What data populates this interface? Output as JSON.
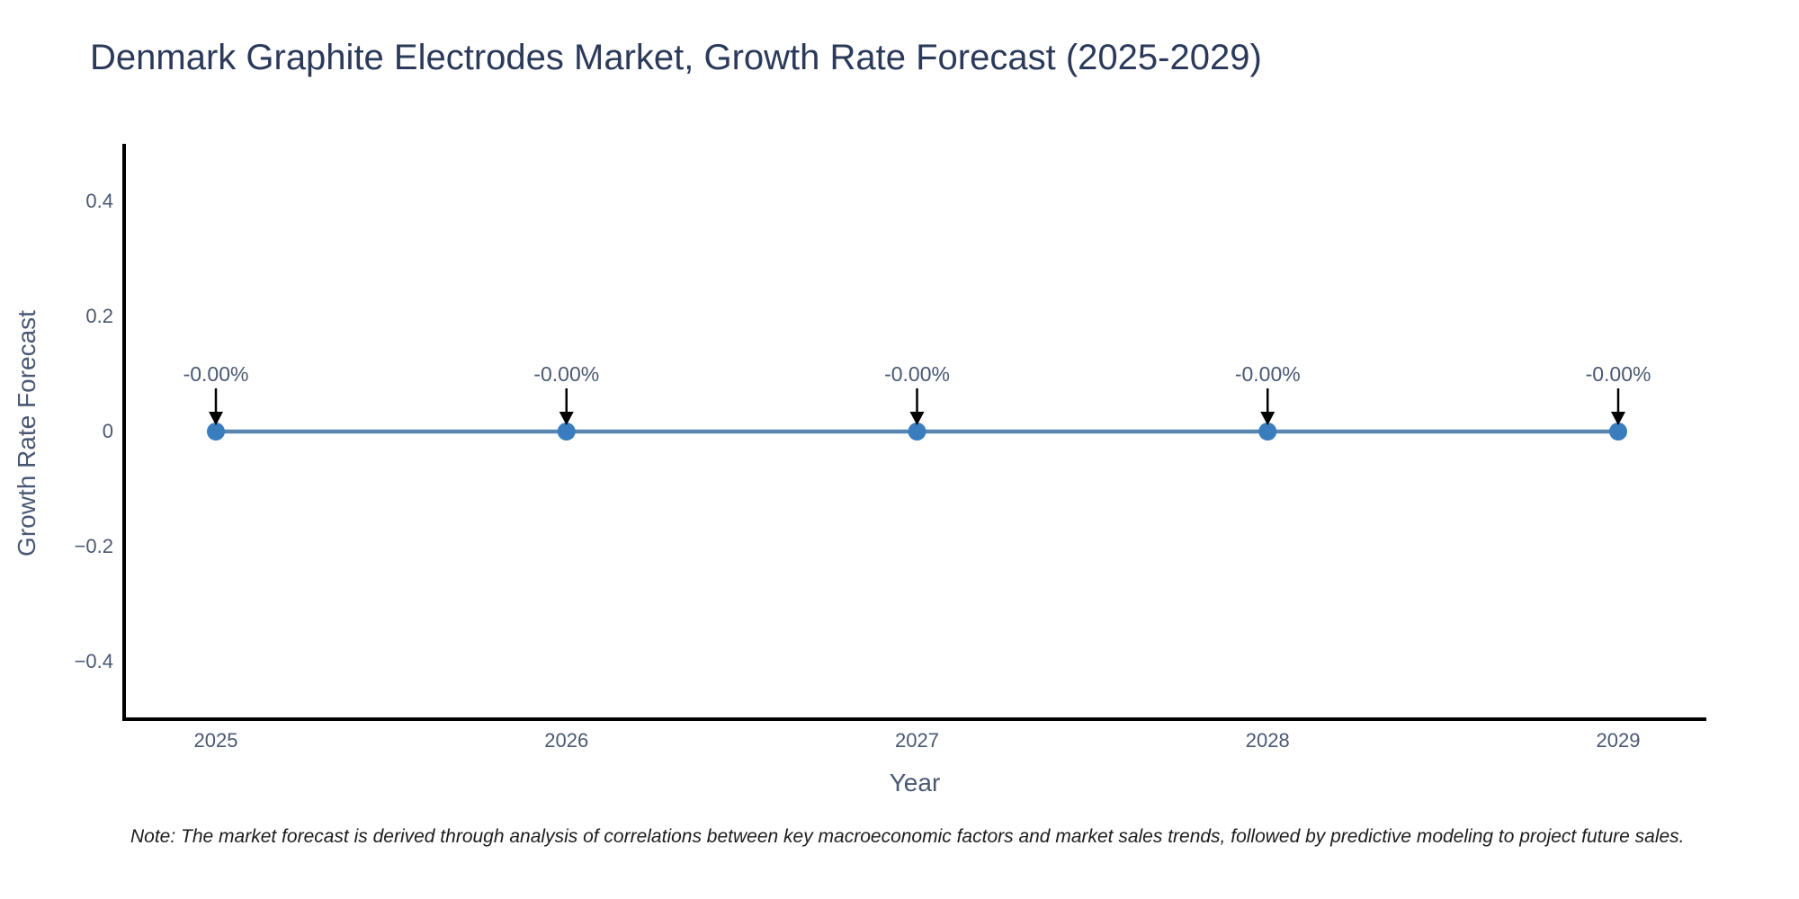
{
  "chart_data": {
    "type": "line",
    "title": "Denmark Graphite Electrodes Market, Growth Rate Forecast (2025-2029)",
    "xlabel": "Year",
    "ylabel": "Growth Rate Forecast",
    "categories": [
      "2025",
      "2026",
      "2027",
      "2028",
      "2029"
    ],
    "series": [
      {
        "name": "Growth Rate Forecast",
        "values": [
          0,
          0,
          0,
          0,
          0
        ],
        "point_labels": [
          "-0.00%",
          "-0.00%",
          "-0.00%",
          "-0.00%",
          "-0.00%"
        ]
      }
    ],
    "ylim": [
      -0.5,
      0.5
    ],
    "yticks": [
      0.4,
      0.2,
      0,
      -0.2,
      -0.4
    ],
    "ytick_labels": [
      "0.4",
      "0.2",
      "0",
      "−0.2",
      "−0.4"
    ],
    "grid": false,
    "legend_position": "none",
    "annotations_have_arrows": true,
    "colors": {
      "line": "#5886b0",
      "marker": "#3a7dbe",
      "axis_spine": "#000000",
      "arrow": "#000000",
      "title_text": "#2b3a5a",
      "tick_text": "#4a5873"
    }
  },
  "footnote": {
    "text": "Note: The market forecast is derived through analysis of correlations between key macroeconomic factors and market sales trends, followed by predictive modeling to project future sales."
  }
}
